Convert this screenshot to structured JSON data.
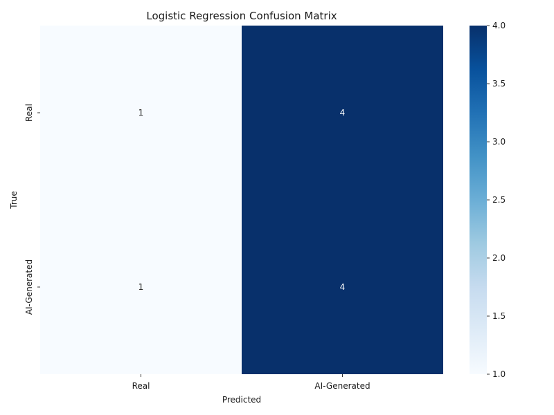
{
  "chart_data": {
    "type": "heatmap",
    "title": "Logistic Regression Confusion Matrix",
    "xlabel": "Predicted",
    "ylabel": "True",
    "x_categories": [
      "Real",
      "AI-Generated"
    ],
    "y_categories": [
      "Real",
      "AI-Generated"
    ],
    "values": [
      [
        1,
        4
      ],
      [
        1,
        4
      ]
    ],
    "colormap": "Blues",
    "color_low": "#f7fbff",
    "color_high": "#08306b",
    "vmin": 1,
    "vmax": 4,
    "colorbar_ticks": [
      "1.0",
      "1.5",
      "2.0",
      "2.5",
      "3.0",
      "3.5",
      "4.0"
    ],
    "annotation_dark": "#262626",
    "annotation_light": "#ffffff"
  }
}
